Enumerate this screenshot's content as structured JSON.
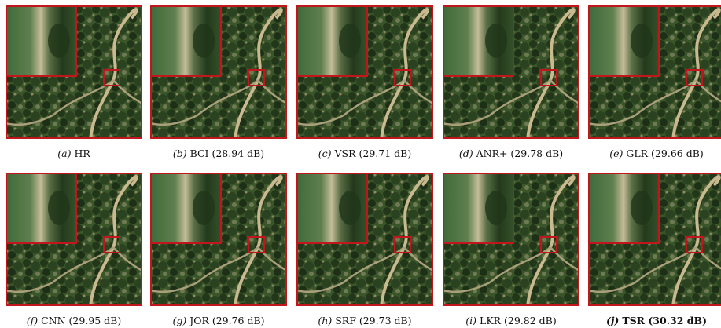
{
  "panels": [
    {
      "label": "(a)",
      "caption": "HR"
    },
    {
      "label": "(b)",
      "caption": "BCI (28.94 dB)"
    },
    {
      "label": "(c)",
      "caption": "VSR (29.71 dB)"
    },
    {
      "label": "(d)",
      "caption": "ANR+ (29.78 dB)"
    },
    {
      "label": "(e)",
      "caption": "GLR (29.66 dB)"
    },
    {
      "label": "(f)",
      "caption": "CNN (29.95 dB)"
    },
    {
      "label": "(g)",
      "caption": "JOR (29.76 dB)"
    },
    {
      "label": "(h)",
      "caption": "SRF (29.73 dB)"
    },
    {
      "label": "(i)",
      "caption": "LKR (29.82 dB)"
    },
    {
      "label": "(j)",
      "caption": "TSR (30.32 dB)",
      "bold": true
    }
  ]
}
